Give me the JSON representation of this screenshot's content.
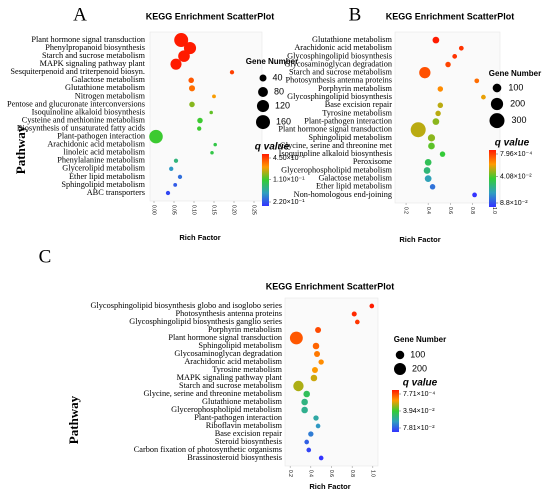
{
  "chart_data": [
    {
      "type": "scatter",
      "panel_label": "A",
      "title": "KEGG Enrichment ScatterPlot",
      "x_label": "Rich Factor",
      "y_label": "Pathway",
      "categories": [
        "Plant hormone signal transduction",
        "Phenylpropanoid biosynthesis",
        "Starch and sucrose metabolism",
        "MAPK signaling pathway plant",
        "Sesquiterpenoid and triterpenoid biosyn.",
        "Galactose metabolism",
        "Glutathione metabolism",
        "Nitrogen metabolism",
        "Pentose and glucuronate interconversions",
        "Isoquinoline alkaloid biosynthesis",
        "Cysteine and methionine metabolism",
        "Biosynthesis of unsaturated fatty acids",
        "Plant-pathogen interaction",
        "Arachidonic acid metabolism",
        "linoleic acid metabolism",
        "Phenylalanine metabolism",
        "Glycerolipid metabolism",
        "Ether lipid metabolism",
        "Sphingolipid metabolism",
        "ABC transporters"
      ],
      "values": [
        0.068,
        0.09,
        0.075,
        0.055,
        0.195,
        0.093,
        0.095,
        0.15,
        0.095,
        0.143,
        0.115,
        0.113,
        0.005,
        0.153,
        0.145,
        0.055,
        0.043,
        0.065,
        0.053,
        0.035
      ],
      "sizes": [
        160,
        120,
        110,
        100,
        15,
        25,
        30,
        12,
        25,
        10,
        25,
        15,
        150,
        10,
        10,
        15,
        15,
        15,
        12,
        15
      ],
      "q_values": [
        0.005,
        0.005,
        0.005,
        0.005,
        0.02,
        0.03,
        0.04,
        0.06,
        0.09,
        0.1,
        0.11,
        0.11,
        0.11,
        0.12,
        0.12,
        0.14,
        0.17,
        0.19,
        0.2,
        0.21
      ],
      "xlim": [
        -0.01,
        0.27
      ],
      "xticks": [
        {
          "value": 0,
          "label": "0.00"
        },
        0.05,
        {
          "value": 0.1,
          "label": "0.10"
        },
        0.15,
        {
          "value": 0.2,
          "label": "0.20"
        },
        0.25
      ],
      "size_legend": {
        "title": "Gene Number",
        "ticks": [
          40,
          80,
          120,
          160
        ]
      },
      "color_legend": {
        "title": "q value",
        "ticks": [
          {
            "value": 0.0045,
            "label": "4.50×10⁻³"
          },
          {
            "value": 0.11,
            "label": "1.10×10⁻¹"
          },
          {
            "value": 0.22,
            "label": "2.20×10⁻¹"
          }
        ]
      },
      "color_scale": [
        "#ff1a00",
        "#ff9a00",
        "#33cc33",
        "#2f9fbf",
        "#3333ff"
      ]
    },
    {
      "type": "scatter",
      "panel_label": "B",
      "title": "KEGG Enrichment ScatterPlot",
      "x_label": "Rich Factor",
      "categories": [
        "Glutathione metabolism",
        "Arachidonic acid metabolism",
        "Glycosphingolipid biosynthesis",
        "Glycosaminoglycan degradation",
        "Starch and sucrose metabolism",
        "Photosynthesis antenna proteins",
        "Porphyrin metabolism",
        "Glycosphingolipid biosynthesis",
        "Base excision repair",
        "Tyrosine metabolism",
        "Plant-pathogen interaction",
        "Plant hormone signal transduction",
        "Sphingolipid metabolism",
        "Glycine, serine and threonine met",
        "Isoquinoline alkaloid biosynthesis",
        "Peroxisome",
        "Glycerophospholipid metabolism",
        "Galactose metabolism",
        "Ether lipid metabolism",
        "Non-homologous end-joining"
      ],
      "values": [
        0.47,
        0.7,
        0.64,
        0.58,
        0.37,
        0.84,
        0.51,
        0.9,
        0.51,
        0.49,
        0.47,
        0.31,
        0.43,
        0.43,
        0.53,
        0.4,
        0.39,
        0.4,
        0.44,
        0.82
      ],
      "sizes": [
        60,
        30,
        30,
        40,
        170,
        30,
        40,
        30,
        40,
        40,
        60,
        300,
        70,
        60,
        40,
        60,
        60,
        60,
        40,
        30
      ],
      "q_values": [
        0.001,
        0.005,
        0.005,
        0.008,
        0.01,
        0.015,
        0.02,
        0.025,
        0.03,
        0.03,
        0.035,
        0.03,
        0.035,
        0.04,
        0.045,
        0.05,
        0.055,
        0.065,
        0.075,
        0.088
      ],
      "xlim": [
        0.1,
        1.05
      ],
      "xticks": [
        0.2,
        0.4,
        0.6,
        0.8,
        {
          "value": 1,
          "label": "1.0"
        }
      ],
      "size_legend": {
        "title": "Gene Number",
        "ticks": [
          100,
          200,
          300
        ]
      },
      "color_legend": {
        "title": "q value",
        "ticks": [
          {
            "value": 0.000796,
            "label": "7.96×10⁻⁴"
          },
          {
            "value": 0.0408,
            "label": "4.08×10⁻²"
          },
          {
            "value": 0.088,
            "label": "8.8×10⁻²"
          }
        ]
      },
      "color_scale": [
        "#ff1a00",
        "#ff9a00",
        "#33cc33",
        "#2f9fbf",
        "#3333ff"
      ]
    },
    {
      "type": "scatter",
      "panel_label": "C",
      "title": "KEGG Enrichment ScatterPlot",
      "x_label": "Rich Factor",
      "y_label": "Pathway",
      "categories": [
        "Glycosphingolipid biosynthesis globo and isoglobo series",
        "Photosynthesis antenna proteins",
        "Glycosphingolipid  biosynthesis ganglio series",
        "Porphyrin metabolism",
        "Plant hormone signal transduction",
        "Sphingolipid metabolism",
        "Glycosaminoglycan degradation",
        "Arachidonic acid metabolism",
        "Tyrosine metabolism",
        "MAPK signaling pathway plant",
        "Starch and sucrose metabolism",
        "Glycine, serine and threonine  metabolism",
        "Glutathione metabolism",
        "Glycerophospholipid  metabolism",
        "Plant-pathogen interaction",
        "Riboflavin metabolism",
        "Base excision repair",
        "Steroid biosynthesis",
        "Carbon fixation  of photosynthetic organisms",
        "Brassinosteroid  biosynthesis"
      ],
      "values": [
        0.99,
        0.82,
        0.85,
        0.47,
        0.26,
        0.45,
        0.46,
        0.5,
        0.44,
        0.43,
        0.28,
        0.36,
        0.34,
        0.34,
        0.45,
        0.47,
        0.4,
        0.36,
        0.38,
        0.5
      ],
      "sizes": [
        30,
        35,
        30,
        50,
        230,
        60,
        50,
        40,
        50,
        60,
        150,
        60,
        60,
        60,
        40,
        30,
        40,
        30,
        30,
        30
      ],
      "q_values": [
        0.001,
        0.003,
        0.005,
        0.008,
        0.01,
        0.012,
        0.015,
        0.018,
        0.02,
        0.025,
        0.028,
        0.045,
        0.05,
        0.052,
        0.055,
        0.06,
        0.065,
        0.07,
        0.075,
        0.078
      ],
      "xlim": [
        0.15,
        1.05
      ],
      "xticks": [
        0.2,
        0.4,
        0.6,
        0.8,
        {
          "value": 1,
          "label": "1.0"
        }
      ],
      "size_legend": {
        "title": "Gene Number",
        "ticks": [
          100,
          200
        ]
      },
      "color_legend": {
        "title": "q value",
        "ticks": [
          {
            "value": 0.000771,
            "label": "7.71×10⁻⁴"
          },
          {
            "value": 0.0394,
            "label": "3.94×10⁻²"
          },
          {
            "value": 0.0781,
            "label": "7.81×10⁻²"
          }
        ]
      },
      "color_scale": [
        "#ff1a00",
        "#ff9a00",
        "#33cc33",
        "#2f9fbf",
        "#3333ff"
      ]
    }
  ]
}
